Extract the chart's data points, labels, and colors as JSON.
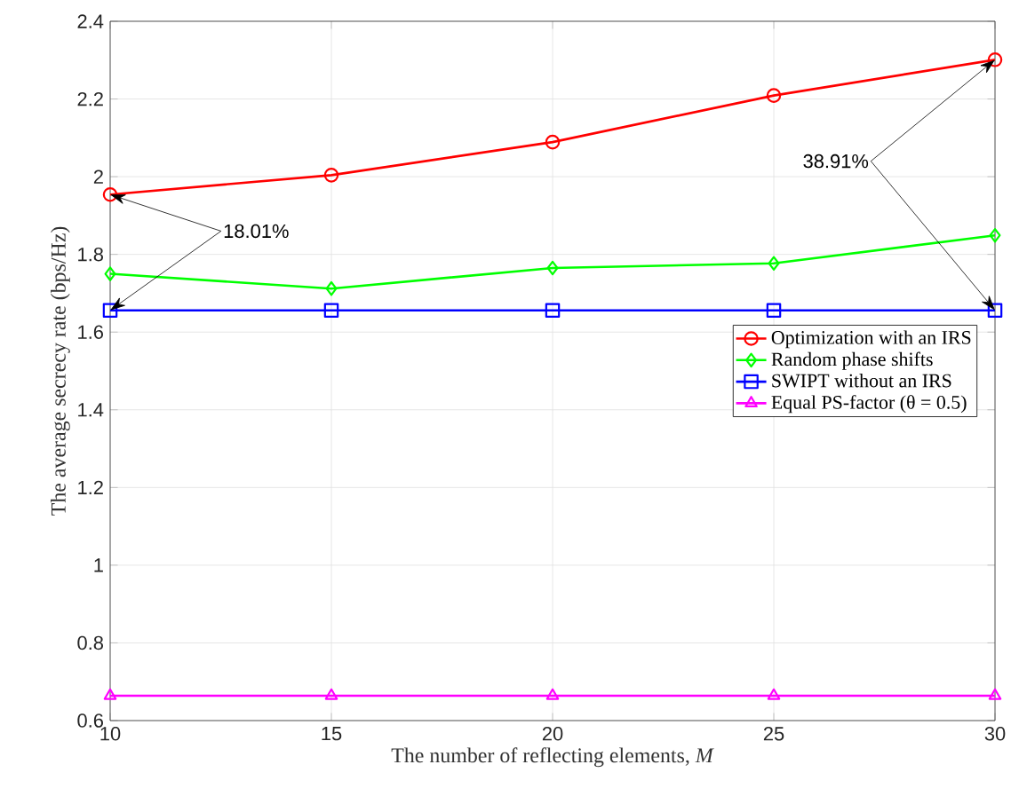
{
  "chart_data": {
    "type": "line",
    "xlabel": "The number of reflecting elements, *M*",
    "ylabel": "The average secrecy rate (bps/Hz)",
    "x": [
      10,
      15,
      20,
      25,
      30
    ],
    "series": [
      {
        "name": "Optimization with an IRS",
        "color": "#ff0000",
        "marker": "circle",
        "values": [
          1.954,
          2.004,
          2.089,
          2.209,
          2.301
        ]
      },
      {
        "name": "Random phase shifts",
        "color": "#00ff00",
        "marker": "diamond",
        "values": [
          1.75,
          1.712,
          1.765,
          1.777,
          1.849
        ]
      },
      {
        "name": "SWIPT without an IRS",
        "color": "#0000ff",
        "marker": "square",
        "values": [
          1.656,
          1.656,
          1.656,
          1.656,
          1.656
        ]
      },
      {
        "name": "Equal PS-factor (θ = 0.5)",
        "color": "#ff00ff",
        "marker": "triangle",
        "values": [
          0.664,
          0.664,
          0.664,
          0.664,
          0.664
        ]
      }
    ],
    "annotations": [
      {
        "text": "18.01%",
        "x": 10,
        "y": 1.954
      },
      {
        "text": "38.91%",
        "x": 30,
        "y": 2.301
      }
    ],
    "xlim": [
      10,
      30
    ],
    "ylim": [
      0.6,
      2.4
    ],
    "xticks": [
      10,
      15,
      20,
      25,
      30
    ],
    "yticks": [
      0.6,
      0.8,
      1,
      1.2,
      1.4,
      1.6,
      1.8,
      2,
      2.2,
      2.4
    ],
    "grid": true,
    "legend": "right",
    "line_style": "solid"
  }
}
